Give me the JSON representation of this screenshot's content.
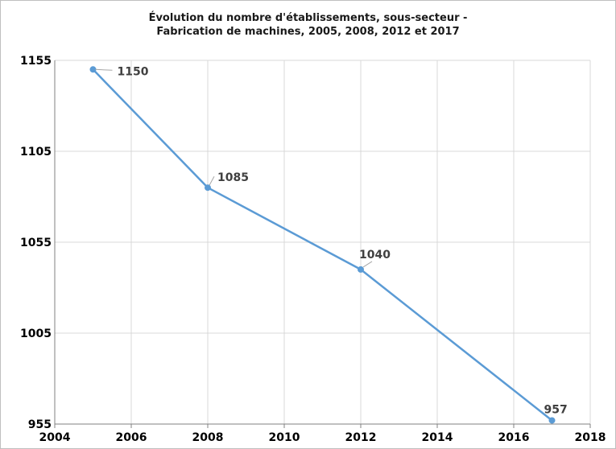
{
  "chart_data": {
    "type": "line",
    "title_lines": [
      "Évolution du nombre d'établissements, sous-secteur -",
      "Fabrication de machines, 2005, 2008, 2012 et 2017"
    ],
    "xlabel": "",
    "ylabel": "",
    "xlim": [
      2004,
      2018
    ],
    "ylim": [
      955,
      1155
    ],
    "x_ticks": [
      2004,
      2006,
      2008,
      2010,
      2012,
      2014,
      2016,
      2018
    ],
    "y_ticks": [
      955,
      1005,
      1055,
      1105,
      1155
    ],
    "grid": true,
    "legend": "none",
    "series": [
      {
        "x": [
          2005,
          2008,
          2012,
          2017
        ],
        "values": [
          1150,
          1085,
          1040,
          957
        ],
        "data_labels": [
          "1150",
          "1085",
          "1040",
          "957"
        ],
        "color": "#5b9bd5"
      }
    ],
    "grid_color": "#d9d9d9",
    "axis_color": "#808080",
    "leader_color": "#a6a6a6"
  }
}
